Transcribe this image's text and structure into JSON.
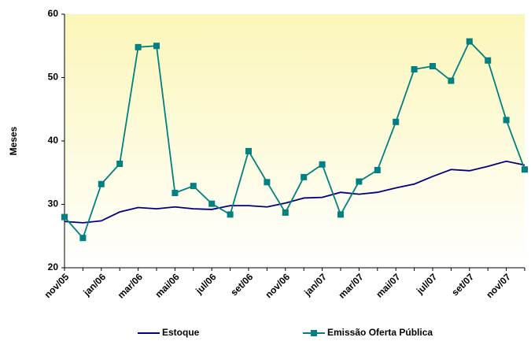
{
  "chart_data": {
    "type": "line",
    "y_label": "Meses",
    "categories": [
      "nov/05",
      null,
      "jan/06",
      null,
      "mar/06",
      null,
      "mai/06",
      null,
      "jul/06",
      null,
      "set/06",
      null,
      "nov/06",
      null,
      "jan/07",
      null,
      "mar/07",
      null,
      "mai/07",
      null,
      "jul/07",
      null,
      "set/07",
      null,
      "nov/07",
      null
    ],
    "series": [
      {
        "name": "Estoque",
        "color": "#000080",
        "marker": false,
        "values": [
          27.3,
          27.1,
          27.4,
          28.8,
          29.5,
          29.3,
          29.6,
          29.3,
          29.2,
          29.8,
          29.8,
          29.6,
          30.2,
          31.0,
          31.1,
          31.9,
          31.6,
          31.9,
          32.6,
          33.2,
          34.4,
          35.5,
          35.3,
          36.0,
          36.8,
          36.2
        ]
      },
      {
        "name": "Emissão Oferta Pública",
        "color": "#008080",
        "marker": true,
        "values": [
          28.0,
          24.7,
          33.2,
          36.4,
          54.8,
          55.0,
          31.8,
          32.9,
          30.1,
          28.4,
          38.4,
          33.5,
          28.7,
          34.3,
          36.3,
          28.4,
          33.6,
          35.4,
          43.0,
          51.3,
          51.8,
          49.5,
          55.7,
          52.7,
          43.3,
          35.5
        ]
      }
    ],
    "ylim": [
      20,
      60
    ],
    "yticks": [
      20,
      30,
      40,
      50,
      60
    ],
    "grid": false
  }
}
